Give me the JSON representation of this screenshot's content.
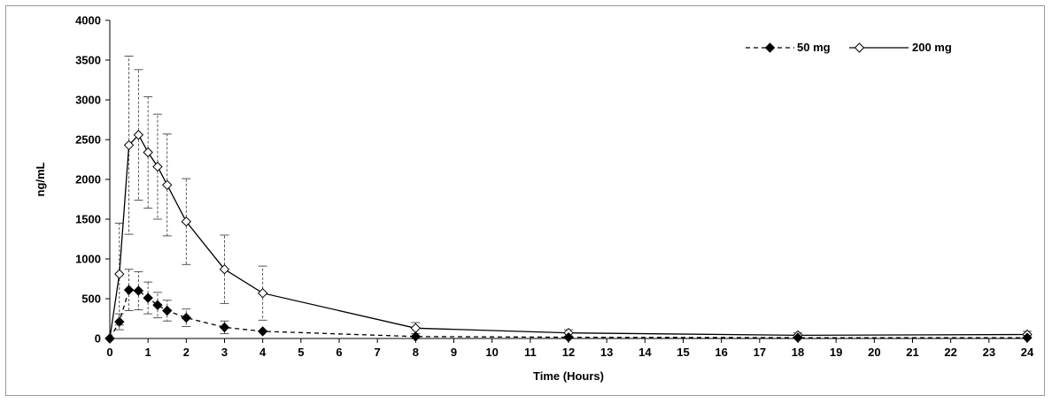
{
  "chart_data": {
    "type": "line",
    "title": "",
    "xlabel": "Time (Hours)",
    "ylabel": "ng/mL",
    "xlim": [
      0,
      24
    ],
    "ylim": [
      0,
      4000
    ],
    "x_ticks": [
      0,
      1,
      2,
      3,
      4,
      5,
      6,
      7,
      8,
      9,
      10,
      11,
      12,
      13,
      14,
      15,
      16,
      17,
      18,
      19,
      20,
      21,
      22,
      23,
      24
    ],
    "y_ticks": [
      0,
      500,
      1000,
      1500,
      2000,
      2500,
      3000,
      3500,
      4000
    ],
    "grid": false,
    "legend_position": "top-right",
    "series": [
      {
        "name": "50 mg",
        "line_style": "dashed",
        "marker": "filled-diamond",
        "x": [
          0,
          0.25,
          0.5,
          0.75,
          1,
          1.25,
          1.5,
          2,
          3,
          4,
          8,
          12,
          18,
          24
        ],
        "y": [
          0,
          210,
          610,
          600,
          510,
          420,
          350,
          260,
          140,
          90,
          25,
          15,
          10,
          10
        ],
        "error": [
          0,
          100,
          260,
          240,
          200,
          160,
          130,
          110,
          80,
          0,
          0,
          0,
          0,
          0
        ]
      },
      {
        "name": "200 mg",
        "line_style": "solid",
        "marker": "open-diamond",
        "x": [
          0,
          0.25,
          0.5,
          0.75,
          1,
          1.25,
          1.5,
          2,
          3,
          4,
          8,
          12,
          18,
          24
        ],
        "y": [
          0,
          810,
          2430,
          2560,
          2340,
          2160,
          1930,
          1470,
          870,
          570,
          130,
          70,
          40,
          50
        ],
        "error": [
          0,
          640,
          1120,
          820,
          700,
          660,
          640,
          540,
          430,
          340,
          70,
          40,
          30,
          40
        ]
      }
    ]
  }
}
